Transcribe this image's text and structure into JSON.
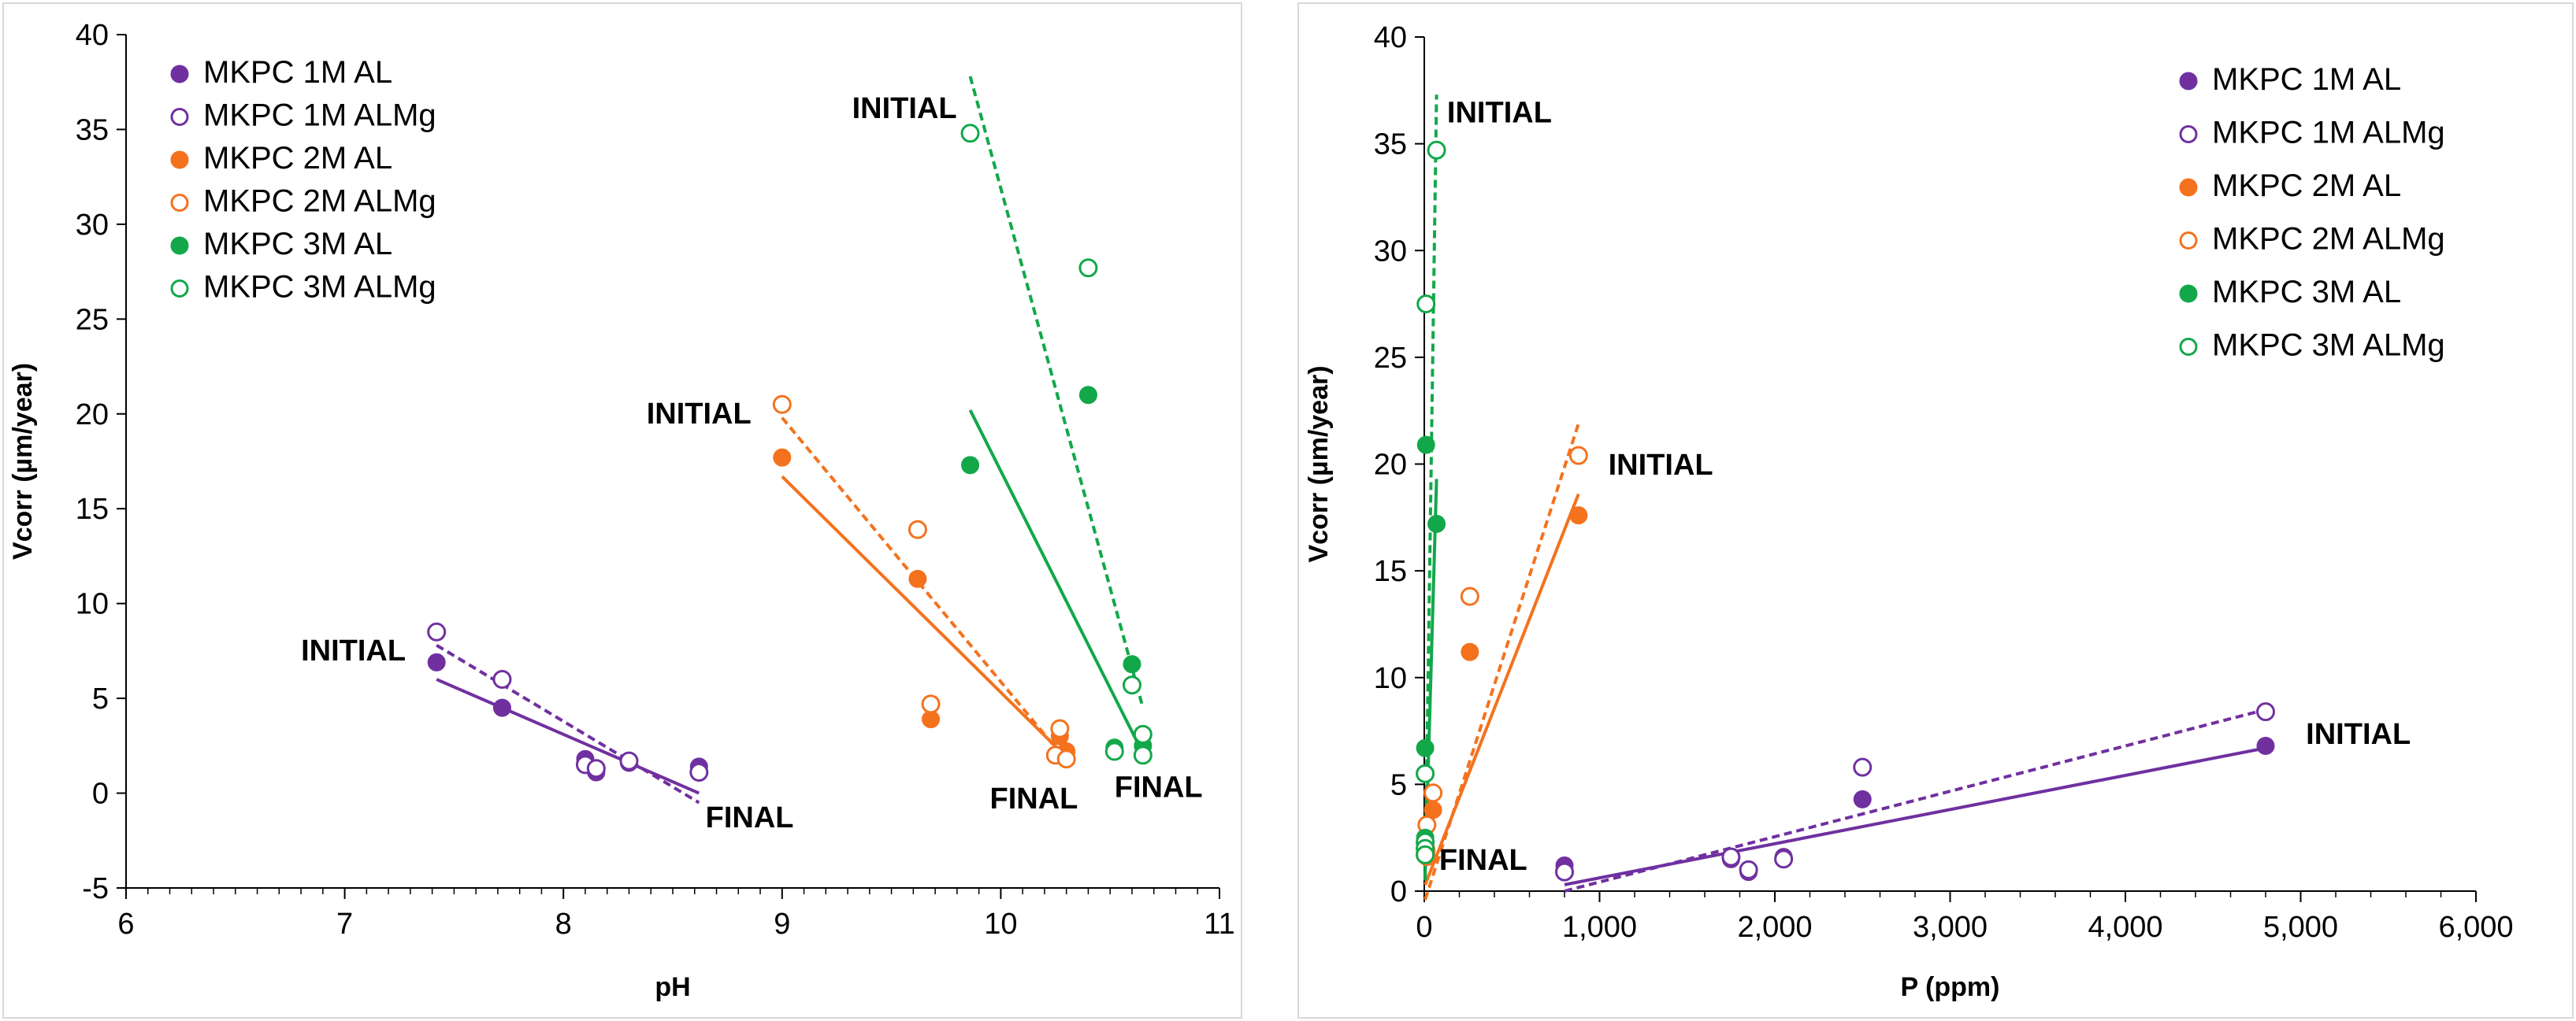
{
  "colors": {
    "purple": "#7030a0",
    "orange": "#f4721e",
    "green": "#12a84a",
    "axis": "#000000",
    "frame": "#d9d9d9"
  },
  "chart_data": [
    {
      "type": "scatter",
      "title": "",
      "xlabel": "pH",
      "ylabel": "Vcorr (µm/year)",
      "xlim": [
        6,
        11
      ],
      "ylim": [
        -5,
        40
      ],
      "x_ticks": [
        6,
        7,
        8,
        9,
        10,
        11
      ],
      "x_tick_labels": [
        "6",
        "7",
        "8",
        "9",
        "10",
        "11"
      ],
      "y_ticks": [
        -5,
        0,
        5,
        10,
        15,
        20,
        25,
        30,
        35,
        40
      ],
      "y_tick_labels": [
        "-5",
        "0",
        "5",
        "10",
        "15",
        "20",
        "25",
        "30",
        "35",
        "40"
      ],
      "legend_position": "top-left",
      "series": [
        {
          "name": "MKPC 1M AL",
          "color": "#7030a0",
          "filled": true,
          "points": [
            [
              7.42,
              6.9
            ],
            [
              7.72,
              4.5
            ],
            [
              8.1,
              1.8
            ],
            [
              8.15,
              1.1
            ],
            [
              8.3,
              1.6
            ],
            [
              8.62,
              1.4
            ]
          ],
          "trend": [
            [
              7.42,
              6.0
            ],
            [
              8.62,
              0.0
            ]
          ]
        },
        {
          "name": "MKPC 1M ALMg",
          "color": "#7030a0",
          "filled": false,
          "points": [
            [
              7.42,
              8.5
            ],
            [
              7.72,
              6.0
            ],
            [
              8.1,
              1.5
            ],
            [
              8.15,
              1.3
            ],
            [
              8.3,
              1.7
            ],
            [
              8.62,
              1.1
            ]
          ],
          "trend": [
            [
              7.42,
              7.8
            ],
            [
              8.62,
              -0.5
            ]
          ]
        },
        {
          "name": "MKPC 2M AL",
          "color": "#f4721e",
          "filled": true,
          "points": [
            [
              9.0,
              17.7
            ],
            [
              9.62,
              11.3
            ],
            [
              9.68,
              3.9
            ],
            [
              10.25,
              2.0
            ],
            [
              10.27,
              3.0
            ],
            [
              10.3,
              2.2
            ]
          ],
          "trend": [
            [
              9.0,
              16.7
            ],
            [
              10.3,
              1.9
            ]
          ]
        },
        {
          "name": "MKPC 2M ALMg",
          "color": "#f4721e",
          "filled": false,
          "points": [
            [
              9.0,
              20.5
            ],
            [
              9.62,
              13.9
            ],
            [
              9.68,
              4.7
            ],
            [
              10.25,
              2.0
            ],
            [
              10.27,
              3.4
            ],
            [
              10.3,
              1.8
            ]
          ],
          "trend": [
            [
              9.0,
              19.8
            ],
            [
              10.3,
              1.7
            ]
          ]
        },
        {
          "name": "MKPC 3M AL",
          "color": "#12a84a",
          "filled": true,
          "points": [
            [
              9.86,
              17.3
            ],
            [
              10.4,
              21.0
            ],
            [
              10.52,
              2.4
            ],
            [
              10.6,
              6.8
            ],
            [
              10.65,
              2.0
            ],
            [
              10.65,
              2.5
            ]
          ],
          "trend": [
            [
              9.86,
              20.2
            ],
            [
              10.65,
              2.1
            ]
          ]
        },
        {
          "name": "MKPC 3M ALMg",
          "color": "#12a84a",
          "filled": false,
          "points": [
            [
              9.86,
              34.8
            ],
            [
              10.4,
              27.7
            ],
            [
              10.52,
              2.2
            ],
            [
              10.6,
              5.7
            ],
            [
              10.65,
              3.1
            ],
            [
              10.65,
              2.0
            ]
          ],
          "trend": [
            [
              9.86,
              37.8
            ],
            [
              10.65,
              4.5
            ]
          ]
        }
      ],
      "annotations": [
        {
          "text": "INITIAL",
          "x": 6.8,
          "y": 7.0
        },
        {
          "text": "FINAL",
          "x": 8.65,
          "y": -1.8
        },
        {
          "text": "INITIAL",
          "x": 8.38,
          "y": 19.5
        },
        {
          "text": "FINAL",
          "x": 9.95,
          "y": -0.8
        },
        {
          "text": "FINAL",
          "x": 10.52,
          "y": -0.2
        },
        {
          "text": "INITIAL",
          "x": 9.32,
          "y": 35.6
        }
      ]
    },
    {
      "type": "scatter",
      "title": "",
      "xlabel": "P (ppm)",
      "ylabel": "Vcorr (µm/year)",
      "xlim": [
        0,
        6000
      ],
      "ylim": [
        0,
        40
      ],
      "x_ticks": [
        0,
        1000,
        2000,
        3000,
        4000,
        5000,
        6000
      ],
      "x_tick_labels": [
        "0",
        "1,000",
        "2,000",
        "3,000",
        "4,000",
        "5,000",
        "6,000"
      ],
      "y_ticks": [
        0,
        5,
        10,
        15,
        20,
        25,
        30,
        35,
        40
      ],
      "y_tick_labels": [
        "0",
        "5",
        "10",
        "15",
        "20",
        "25",
        "30",
        "35",
        "40"
      ],
      "legend_position": "top-right",
      "series": [
        {
          "name": "MKPC 1M AL",
          "color": "#7030a0",
          "filled": true,
          "points": [
            [
              4800,
              6.8
            ],
            [
              2500,
              4.3
            ],
            [
              2050,
              1.6
            ],
            [
              1850,
              0.9
            ],
            [
              1750,
              1.5
            ],
            [
              800,
              1.2
            ]
          ],
          "trend": [
            [
              800,
              0.3
            ],
            [
              4800,
              6.7
            ]
          ]
        },
        {
          "name": "MKPC 1M ALMg",
          "color": "#7030a0",
          "filled": false,
          "points": [
            [
              4800,
              8.4
            ],
            [
              2500,
              5.8
            ],
            [
              2050,
              1.5
            ],
            [
              1850,
              1.0
            ],
            [
              1750,
              1.6
            ],
            [
              800,
              0.9
            ]
          ],
          "trend": [
            [
              800,
              0.0
            ],
            [
              4800,
              8.5
            ]
          ]
        },
        {
          "name": "MKPC 2M AL",
          "color": "#f4721e",
          "filled": true,
          "points": [
            [
              880,
              17.6
            ],
            [
              260,
              11.2
            ],
            [
              50,
              3.8
            ],
            [
              10,
              2.0
            ],
            [
              15,
              1.6
            ],
            [
              5,
              1.8
            ]
          ],
          "trend": [
            [
              5,
              0.3
            ],
            [
              880,
              18.6
            ]
          ]
        },
        {
          "name": "MKPC 2M ALMg",
          "color": "#f4721e",
          "filled": false,
          "points": [
            [
              880,
              20.4
            ],
            [
              260,
              13.8
            ],
            [
              50,
              4.6
            ],
            [
              10,
              1.9
            ],
            [
              15,
              3.1
            ],
            [
              5,
              1.7
            ]
          ],
          "trend": [
            [
              5,
              -0.4
            ],
            [
              880,
              21.9
            ]
          ]
        },
        {
          "name": "MKPC 3M AL",
          "color": "#12a84a",
          "filled": true,
          "points": [
            [
              70,
              17.2
            ],
            [
              10,
              20.9
            ],
            [
              5,
              6.7
            ],
            [
              5,
              2.5
            ],
            [
              5,
              2.0
            ],
            [
              5,
              1.8
            ]
          ],
          "trend": [
            [
              5,
              0.8
            ],
            [
              70,
              19.3
            ]
          ]
        },
        {
          "name": "MKPC 3M ALMg",
          "color": "#12a84a",
          "filled": false,
          "points": [
            [
              70,
              34.7
            ],
            [
              10,
              27.5
            ],
            [
              5,
              5.5
            ],
            [
              5,
              2.3
            ],
            [
              5,
              2.0
            ],
            [
              5,
              1.7
            ]
          ],
          "trend": [
            [
              5,
              0.5
            ],
            [
              70,
              37.3
            ]
          ]
        }
      ],
      "annotations": [
        {
          "text": "INITIAL",
          "x": 130,
          "y": 36.0
        },
        {
          "text": "INITIAL",
          "x": 1050,
          "y": 19.5
        },
        {
          "text": "FINAL",
          "x": 85,
          "y": 1.0
        },
        {
          "text": "INITIAL",
          "x": 5030,
          "y": 6.9
        }
      ]
    }
  ]
}
